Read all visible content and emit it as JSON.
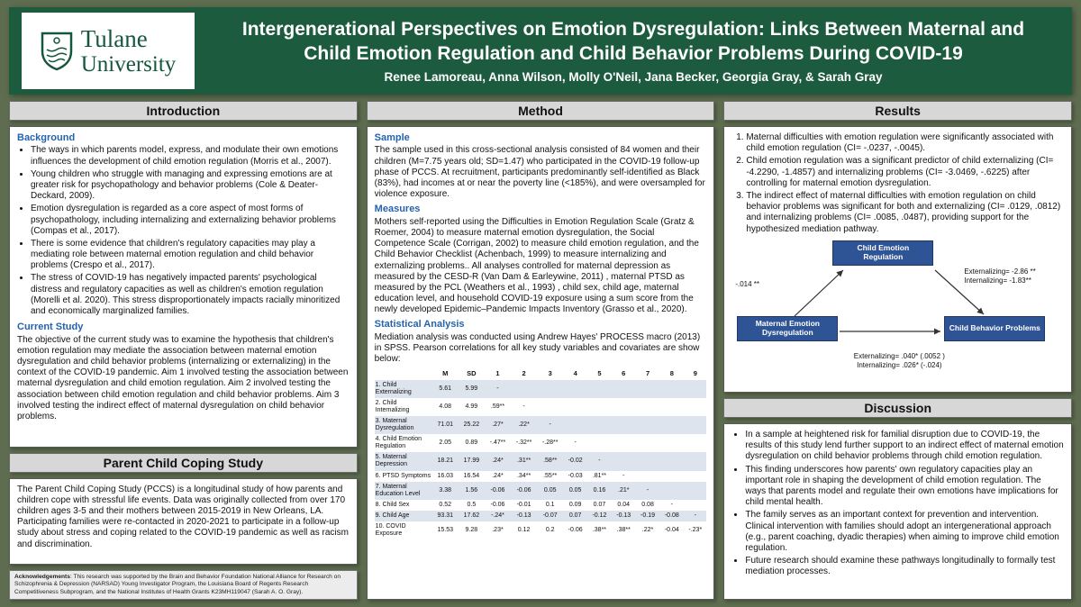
{
  "header": {
    "logo_line1": "Tulane",
    "logo_line2": "University",
    "title": "Intergenerational Perspectives on Emotion Dysregulation: Links Between Maternal and Child Emotion Regulation and Child Behavior Problems During COVID-19",
    "authors": "Renee Lamoreau, Anna Wilson, Molly O'Neil, Jana Becker, Georgia Gray, & Sarah Gray"
  },
  "introduction": {
    "section_title": "Introduction",
    "background_heading": "Background",
    "background_bullets": [
      "The ways in which parents model, express, and modulate their own emotions influences the development of child emotion regulation (Morris et al., 2007).",
      "Young children who struggle with managing and expressing emotions are at greater risk for psychopathology and behavior problems (Cole & Deater-Deckard, 2009).",
      "Emotion dysregulation is regarded as a core aspect of most forms of psychopathology, including internalizing and externalizing behavior problems (Compas et al., 2017).",
      "There is some evidence that children's regulatory capacities may play a mediating role between maternal emotion regulation and child behavior problems (Crespo et al., 2017).",
      "The stress of COVID-19 has negatively impacted parents' psychological distress and regulatory capacities as well as children's emotion regulation (Morelli et al. 2020). This stress disproportionately impacts racially minoritized and economically marginalized families."
    ],
    "current_study_heading": "Current Study",
    "current_study_text": "The objective of the current study was to examine the hypothesis that children's emotion regulation may mediate the association between maternal emotion dysregulation and child behavior problems (internalizing or externalizing) in the context of the COVID-19 pandemic. Aim 1 involved testing the association between maternal dysregulation and child emotion regulation. Aim 2 involved testing the association between child emotion regulation and child behavior problems. Aim 3 involved testing the indirect effect of maternal dysregulation on child behavior problems."
  },
  "pccs": {
    "section_title": "Parent Child Coping Study",
    "text": "The Parent Child Coping Study (PCCS) is a longitudinal study of how parents and children cope with stressful life events. Data was originally collected from over 170 children ages 3-5 and their mothers between 2015-2019 in New Orleans, LA. Participating families were re-contacted in 2020-2021 to participate in a follow-up study about stress and coping related to the COVID-19 pandemic as well as racism and discrimination."
  },
  "acknowledgements": {
    "label": "Acknowledgements",
    "text": ": This research was supported by the Brain and Behavior Foundation National Alliance for Research on Schizophrenia & Depression (NARSAD) Young Investigator Program, the Louisiana Board of Regents Research Competitiveness Subprogram, and the National Institutes of Health Grants K23MH119047 (Sarah A. O. Gray)."
  },
  "method": {
    "section_title": "Method",
    "sample_heading": "Sample",
    "sample_text": "The sample used in this cross-sectional analysis consisted of 84 women and their children (M=7.75 years old; SD=1.47) who participated in the COVID-19 follow-up phase of PCCS. At recruitment, participants predominantly self-identified as Black (83%), had incomes at or near the poverty line (<185%), and were oversampled for violence exposure.",
    "measures_heading": "Measures",
    "measures_text": "Mothers self-reported using the Difficulties in Emotion Regulation Scale (Gratz & Roemer, 2004) to measure maternal emotion dysregulation, the Social Competence Scale (Corrigan, 2002) to measure child emotion regulation, and the Child Behavior Checklist (Achenbach, 1999) to measure internalizing and externalizing problems.. All analyses controlled for maternal depression as measured by the CESD-R (Van Dam & Earleywine, 2011) , maternal PTSD as measured by the PCL (Weathers et al., 1993) , child sex, child age, maternal education level, and household COVID-19 exposure using a sum score from the newly developed Epidemic–Pandemic Impacts Inventory (Grasso et al., 2020).",
    "statistical_heading": "Statistical Analysis",
    "statistical_text": "Mediation analysis was conducted using Andrew Hayes' PROCESS macro (2013) in SPSS. Pearson correlations for all key study variables and covariates are show below:",
    "table": {
      "columns": [
        "",
        "M",
        "SD",
        "1",
        "2",
        "3",
        "4",
        "5",
        "6",
        "7",
        "8",
        "9"
      ],
      "rows": [
        {
          "label": "1. Child Externalizing",
          "cells": [
            "5.61",
            "5.99",
            "-",
            "",
            "",
            "",
            "",
            "",
            "",
            "",
            ""
          ]
        },
        {
          "label": "2. Child Internalizing",
          "cells": [
            "4.08",
            "4.99",
            ".59**",
            "-",
            "",
            "",
            "",
            "",
            "",
            "",
            ""
          ]
        },
        {
          "label": "3. Maternal Dysregulation",
          "cells": [
            "71.01",
            "25.22",
            ".27*",
            ".22*",
            "-",
            "",
            "",
            "",
            "",
            "",
            ""
          ]
        },
        {
          "label": "4. Child Emotion Regulation",
          "cells": [
            "2.05",
            "0.89",
            "-.47**",
            "-.32**",
            "-.28**",
            "-",
            "",
            "",
            "",
            "",
            ""
          ]
        },
        {
          "label": "5. Maternal Depression",
          "cells": [
            "18.21",
            "17.99",
            ".24*",
            ".31**",
            ".58**",
            "-0.02",
            "-",
            "",
            "",
            "",
            ""
          ]
        },
        {
          "label": "6. PTSD Symptoms",
          "cells": [
            "16.03",
            "16.54",
            ".24*",
            ".34**",
            ".55**",
            "-0.03",
            ".81**",
            "-",
            "",
            "",
            ""
          ]
        },
        {
          "label": "7. Maternal Education Level",
          "cells": [
            "3.38",
            "1.56",
            "-0.06",
            "-0.06",
            "0.05",
            "0.05",
            "0.16",
            ".21*",
            "-",
            "",
            ""
          ]
        },
        {
          "label": "8. Child Sex",
          "cells": [
            "0.52",
            "0.5",
            "-0.06",
            "-0.01",
            "0.1",
            "0.09",
            "0.07",
            "0.04",
            "0.08",
            "-",
            ""
          ]
        },
        {
          "label": "9. Child Age",
          "cells": [
            "93.31",
            "17.62",
            "-.24*",
            "-0.13",
            "-0.07",
            "0.07",
            "-0.12",
            "-0.13",
            "-0.19",
            "-0.08",
            "-"
          ]
        },
        {
          "label": "10. COVID Exposure",
          "cells": [
            "15.53",
            "9.28",
            ".23*",
            "0.12",
            "0.2",
            "-0.06",
            ".38**",
            ".38**",
            ".22*",
            "-0.04",
            "-.23*"
          ]
        }
      ]
    }
  },
  "results": {
    "section_title": "Results",
    "items": [
      "Maternal difficulties with emotion regulation were significantly associated with child emotion regulation (CI= -.0237, -.0045).",
      "Child emotion regulation was a significant predictor of child externalizing (CI= -4.2290, -1.4857) and internalizing problems (CI= -3.0469, -.6225) after controlling for maternal emotion dysregulation.",
      "The indirect effect of maternal difficulties with emotion regulation on child behavior problems was significant for both and externalizing (CI= .0129, .0812) and internalizing problems (CI= .0085, .0487), providing support for the hypothesized mediation pathway."
    ],
    "diagram": {
      "top_box": "Child Emotion Regulation",
      "left_box": "Maternal Emotion Dysregulation",
      "right_box": "Child Behavior Problems",
      "path_a_label": "-.014 **",
      "path_b_labels": [
        "Externalizing= -2.86 **",
        "Internalizing= -1.83**"
      ],
      "path_c_labels": [
        "Externalizing= .040* (.0052 )",
        "Internalizing= .026* (-.024)"
      ]
    }
  },
  "discussion": {
    "section_title": "Discussion",
    "bullets": [
      "In a sample at heightened risk for familial disruption due to COVID-19, the results of this study lend further support to an indirect effect of maternal emotion dysregulation on child behavior problems through child emotion regulation.",
      "This finding underscores how parents' own regulatory capacities play an important role in shaping the development of child emotion regulation. The ways that parents model and regulate their own emotions have implications for child mental health.",
      "The family serves as an important context for prevention and intervention. Clinical intervention with families should adopt an intergenerational approach (e.g., parent coaching, dyadic therapies) when aiming to improve child emotion regulation.",
      "Future research should examine these pathways longitudinally to formally test mediation processes."
    ]
  }
}
